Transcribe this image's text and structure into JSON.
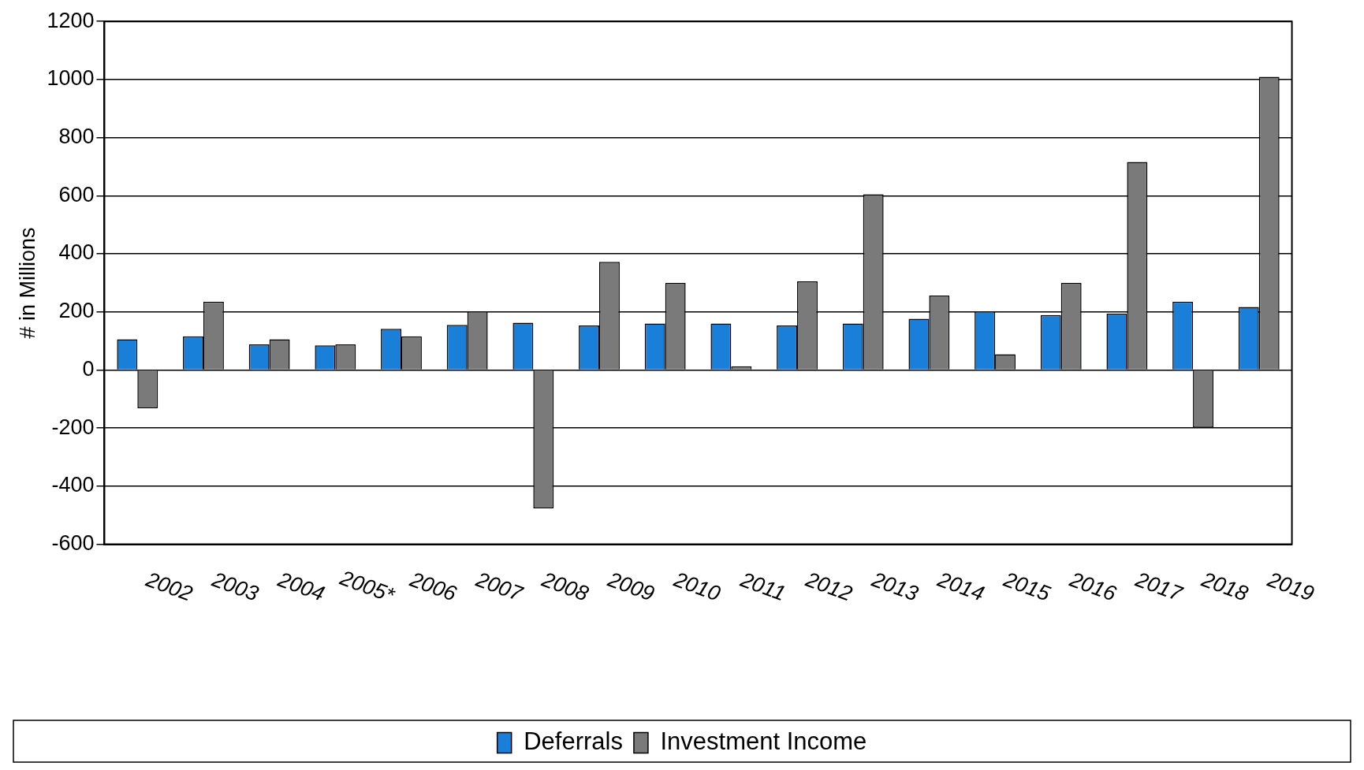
{
  "chart_data": {
    "type": "bar",
    "ylabel": "# in Millions",
    "categories": [
      "2002",
      "2003",
      "2004",
      "2005*",
      "2006",
      "2007",
      "2008",
      "2009",
      "2010",
      "2011",
      "2012",
      "2013",
      "2014",
      "2015",
      "2016",
      "2017",
      "2018",
      "2019"
    ],
    "series": [
      {
        "name": "Deferrals",
        "color": "#1a7fd8",
        "values": [
          106,
          116,
          88,
          85,
          142,
          155,
          163,
          153,
          160,
          160,
          153,
          160,
          176,
          202,
          189,
          194,
          235,
          217
        ]
      },
      {
        "name": "Investment Income",
        "color": "#7a7a7a",
        "values": [
          -132,
          235,
          106,
          88,
          116,
          202,
          -476,
          372,
          300,
          13,
          305,
          605,
          256,
          54,
          300,
          716,
          -199,
          1009
        ]
      }
    ],
    "ylim": [
      -600,
      1200
    ],
    "yticks": [
      -600,
      -400,
      -200,
      0,
      200,
      400,
      600,
      800,
      1000,
      1200
    ],
    "grid": "y",
    "legend": "bottom"
  }
}
